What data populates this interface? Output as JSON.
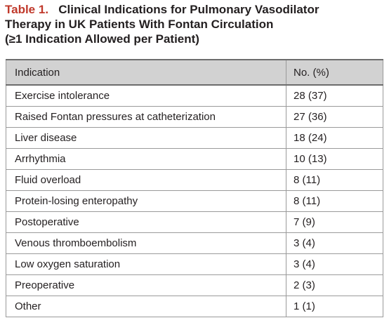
{
  "caption": {
    "label": "Table 1.",
    "title_line1": "Clinical Indications for Pulmonary Vasodilator",
    "title_line2": "Therapy in UK Patients With Fontan Circulation",
    "title_line3": "(≥1 Indication Allowed per Patient)"
  },
  "table": {
    "headers": [
      "Indication",
      "No. (%)"
    ],
    "rows": [
      [
        "Exercise intolerance",
        "28 (37)"
      ],
      [
        "Raised Fontan pressures at catheterization",
        "27 (36)"
      ],
      [
        "Liver disease",
        "18 (24)"
      ],
      [
        "Arrhythmia",
        "10 (13)"
      ],
      [
        "Fluid overload",
        "8 (11)"
      ],
      [
        "Protein-losing enteropathy",
        "8 (11)"
      ],
      [
        "Postoperative",
        "7 (9)"
      ],
      [
        "Venous thromboembolism",
        "3 (4)"
      ],
      [
        "Low oxygen saturation",
        "3 (4)"
      ],
      [
        "Preoperative",
        "2 (3)"
      ],
      [
        "Other",
        "1 (1)"
      ]
    ]
  },
  "colors": {
    "label": "#c0392b",
    "header_bg": "#d2d2d2",
    "text": "#231f20"
  }
}
